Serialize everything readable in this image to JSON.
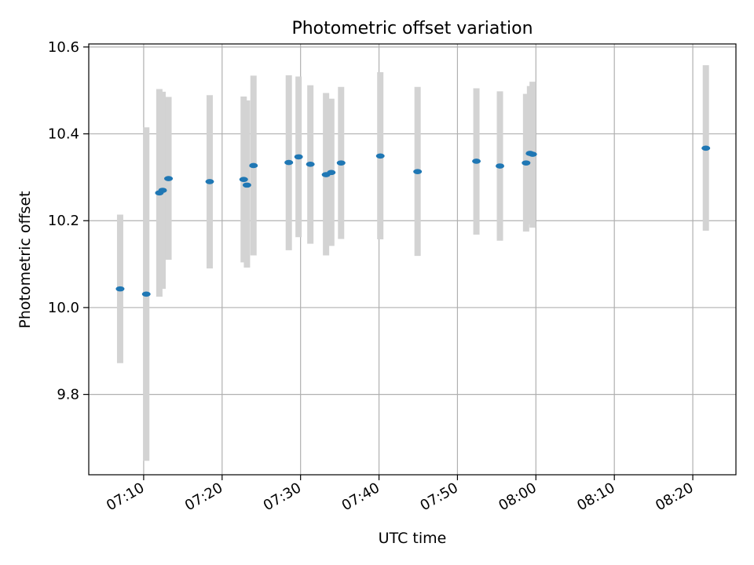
{
  "chart_data": {
    "type": "scatter",
    "title": "Photometric offset variation",
    "xlabel": "UTC time",
    "ylabel": "Photometric offset",
    "x_ticks": [
      "07:10",
      "07:20",
      "07:30",
      "07:40",
      "07:50",
      "08:00",
      "08:10",
      "08:20"
    ],
    "y_ticks": [
      "9.8",
      "10.0",
      "10.2",
      "10.4",
      "10.6"
    ],
    "xlim": [
      "07:03:00",
      "08:25:30"
    ],
    "ylim": [
      9.615,
      10.607
    ],
    "grid": true,
    "x_tick_label_rotation": "30 degrees",
    "series": [
      {
        "marker_color": "#1f77b4",
        "errorbar_color": "#d3d3d3",
        "points": [
          {
            "x": "07:07:00",
            "y": 10.043,
            "ylow": 9.872,
            "yhigh": 10.214
          },
          {
            "x": "07:10:20",
            "y": 10.031,
            "ylow": 9.647,
            "yhigh": 10.415
          },
          {
            "x": "07:12:00",
            "y": 10.264,
            "ylow": 10.025,
            "yhigh": 10.503
          },
          {
            "x": "07:12:25",
            "y": 10.27,
            "ylow": 10.043,
            "yhigh": 10.497
          },
          {
            "x": "07:13:10",
            "y": 10.297,
            "ylow": 10.11,
            "yhigh": 10.485
          },
          {
            "x": "07:18:25",
            "y": 10.29,
            "ylow": 10.09,
            "yhigh": 10.489
          },
          {
            "x": "07:22:45",
            "y": 10.295,
            "ylow": 10.104,
            "yhigh": 10.486
          },
          {
            "x": "07:23:10",
            "y": 10.282,
            "ylow": 10.092,
            "yhigh": 10.477
          },
          {
            "x": "07:24:00",
            "y": 10.327,
            "ylow": 10.12,
            "yhigh": 10.534
          },
          {
            "x": "07:28:30",
            "y": 10.334,
            "ylow": 10.132,
            "yhigh": 10.535
          },
          {
            "x": "07:29:45",
            "y": 10.347,
            "ylow": 10.162,
            "yhigh": 10.532
          },
          {
            "x": "07:31:15",
            "y": 10.33,
            "ylow": 10.147,
            "yhigh": 10.512
          },
          {
            "x": "07:33:15",
            "y": 10.306,
            "ylow": 10.12,
            "yhigh": 10.494
          },
          {
            "x": "07:33:55",
            "y": 10.311,
            "ylow": 10.142,
            "yhigh": 10.481
          },
          {
            "x": "07:35:10",
            "y": 10.333,
            "ylow": 10.158,
            "yhigh": 10.508
          },
          {
            "x": "07:40:10",
            "y": 10.349,
            "ylow": 10.157,
            "yhigh": 10.542
          },
          {
            "x": "07:44:55",
            "y": 10.313,
            "ylow": 10.119,
            "yhigh": 10.508
          },
          {
            "x": "07:52:25",
            "y": 10.337,
            "ylow": 10.168,
            "yhigh": 10.505
          },
          {
            "x": "07:55:25",
            "y": 10.326,
            "ylow": 10.154,
            "yhigh": 10.498
          },
          {
            "x": "07:58:45",
            "y": 10.333,
            "ylow": 10.175,
            "yhigh": 10.492
          },
          {
            "x": "07:59:15",
            "y": 10.355,
            "ylow": 10.192,
            "yhigh": 10.51
          },
          {
            "x": "07:59:35",
            "y": 10.353,
            "ylow": 10.184,
            "yhigh": 10.52
          },
          {
            "x": "08:21:40",
            "y": 10.367,
            "ylow": 10.177,
            "yhigh": 10.558
          }
        ]
      }
    ]
  }
}
